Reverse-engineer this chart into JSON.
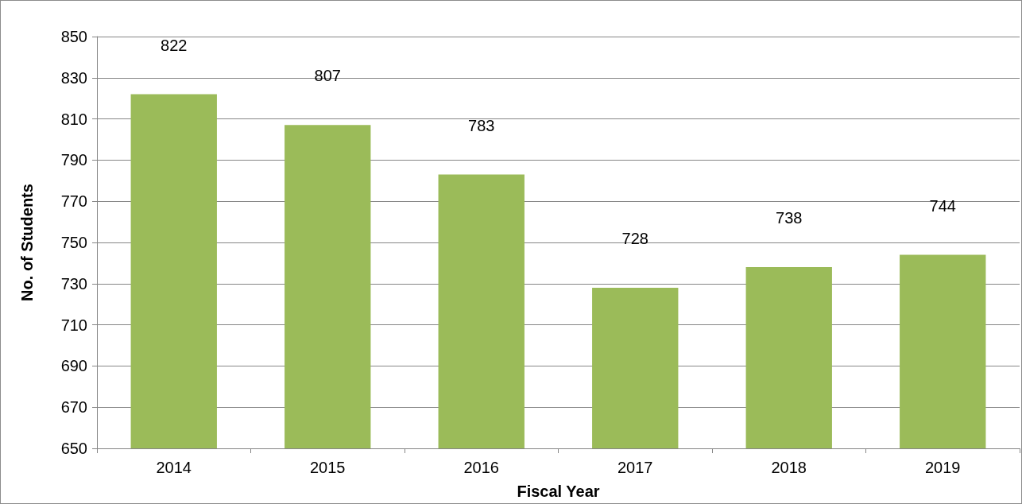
{
  "chart_data": {
    "type": "bar",
    "xlabel": "Fiscal Year",
    "ylabel": "No. of Students",
    "categories": [
      "2014",
      "2015",
      "2016",
      "2017",
      "2018",
      "2019"
    ],
    "values": [
      822,
      807,
      783,
      728,
      738,
      744
    ],
    "color": "#9bbb59",
    "ylim": [
      650,
      850
    ],
    "yticks": [
      650,
      670,
      690,
      710,
      730,
      750,
      770,
      790,
      810,
      830,
      850
    ],
    "grid": "y",
    "data_labels": true
  }
}
